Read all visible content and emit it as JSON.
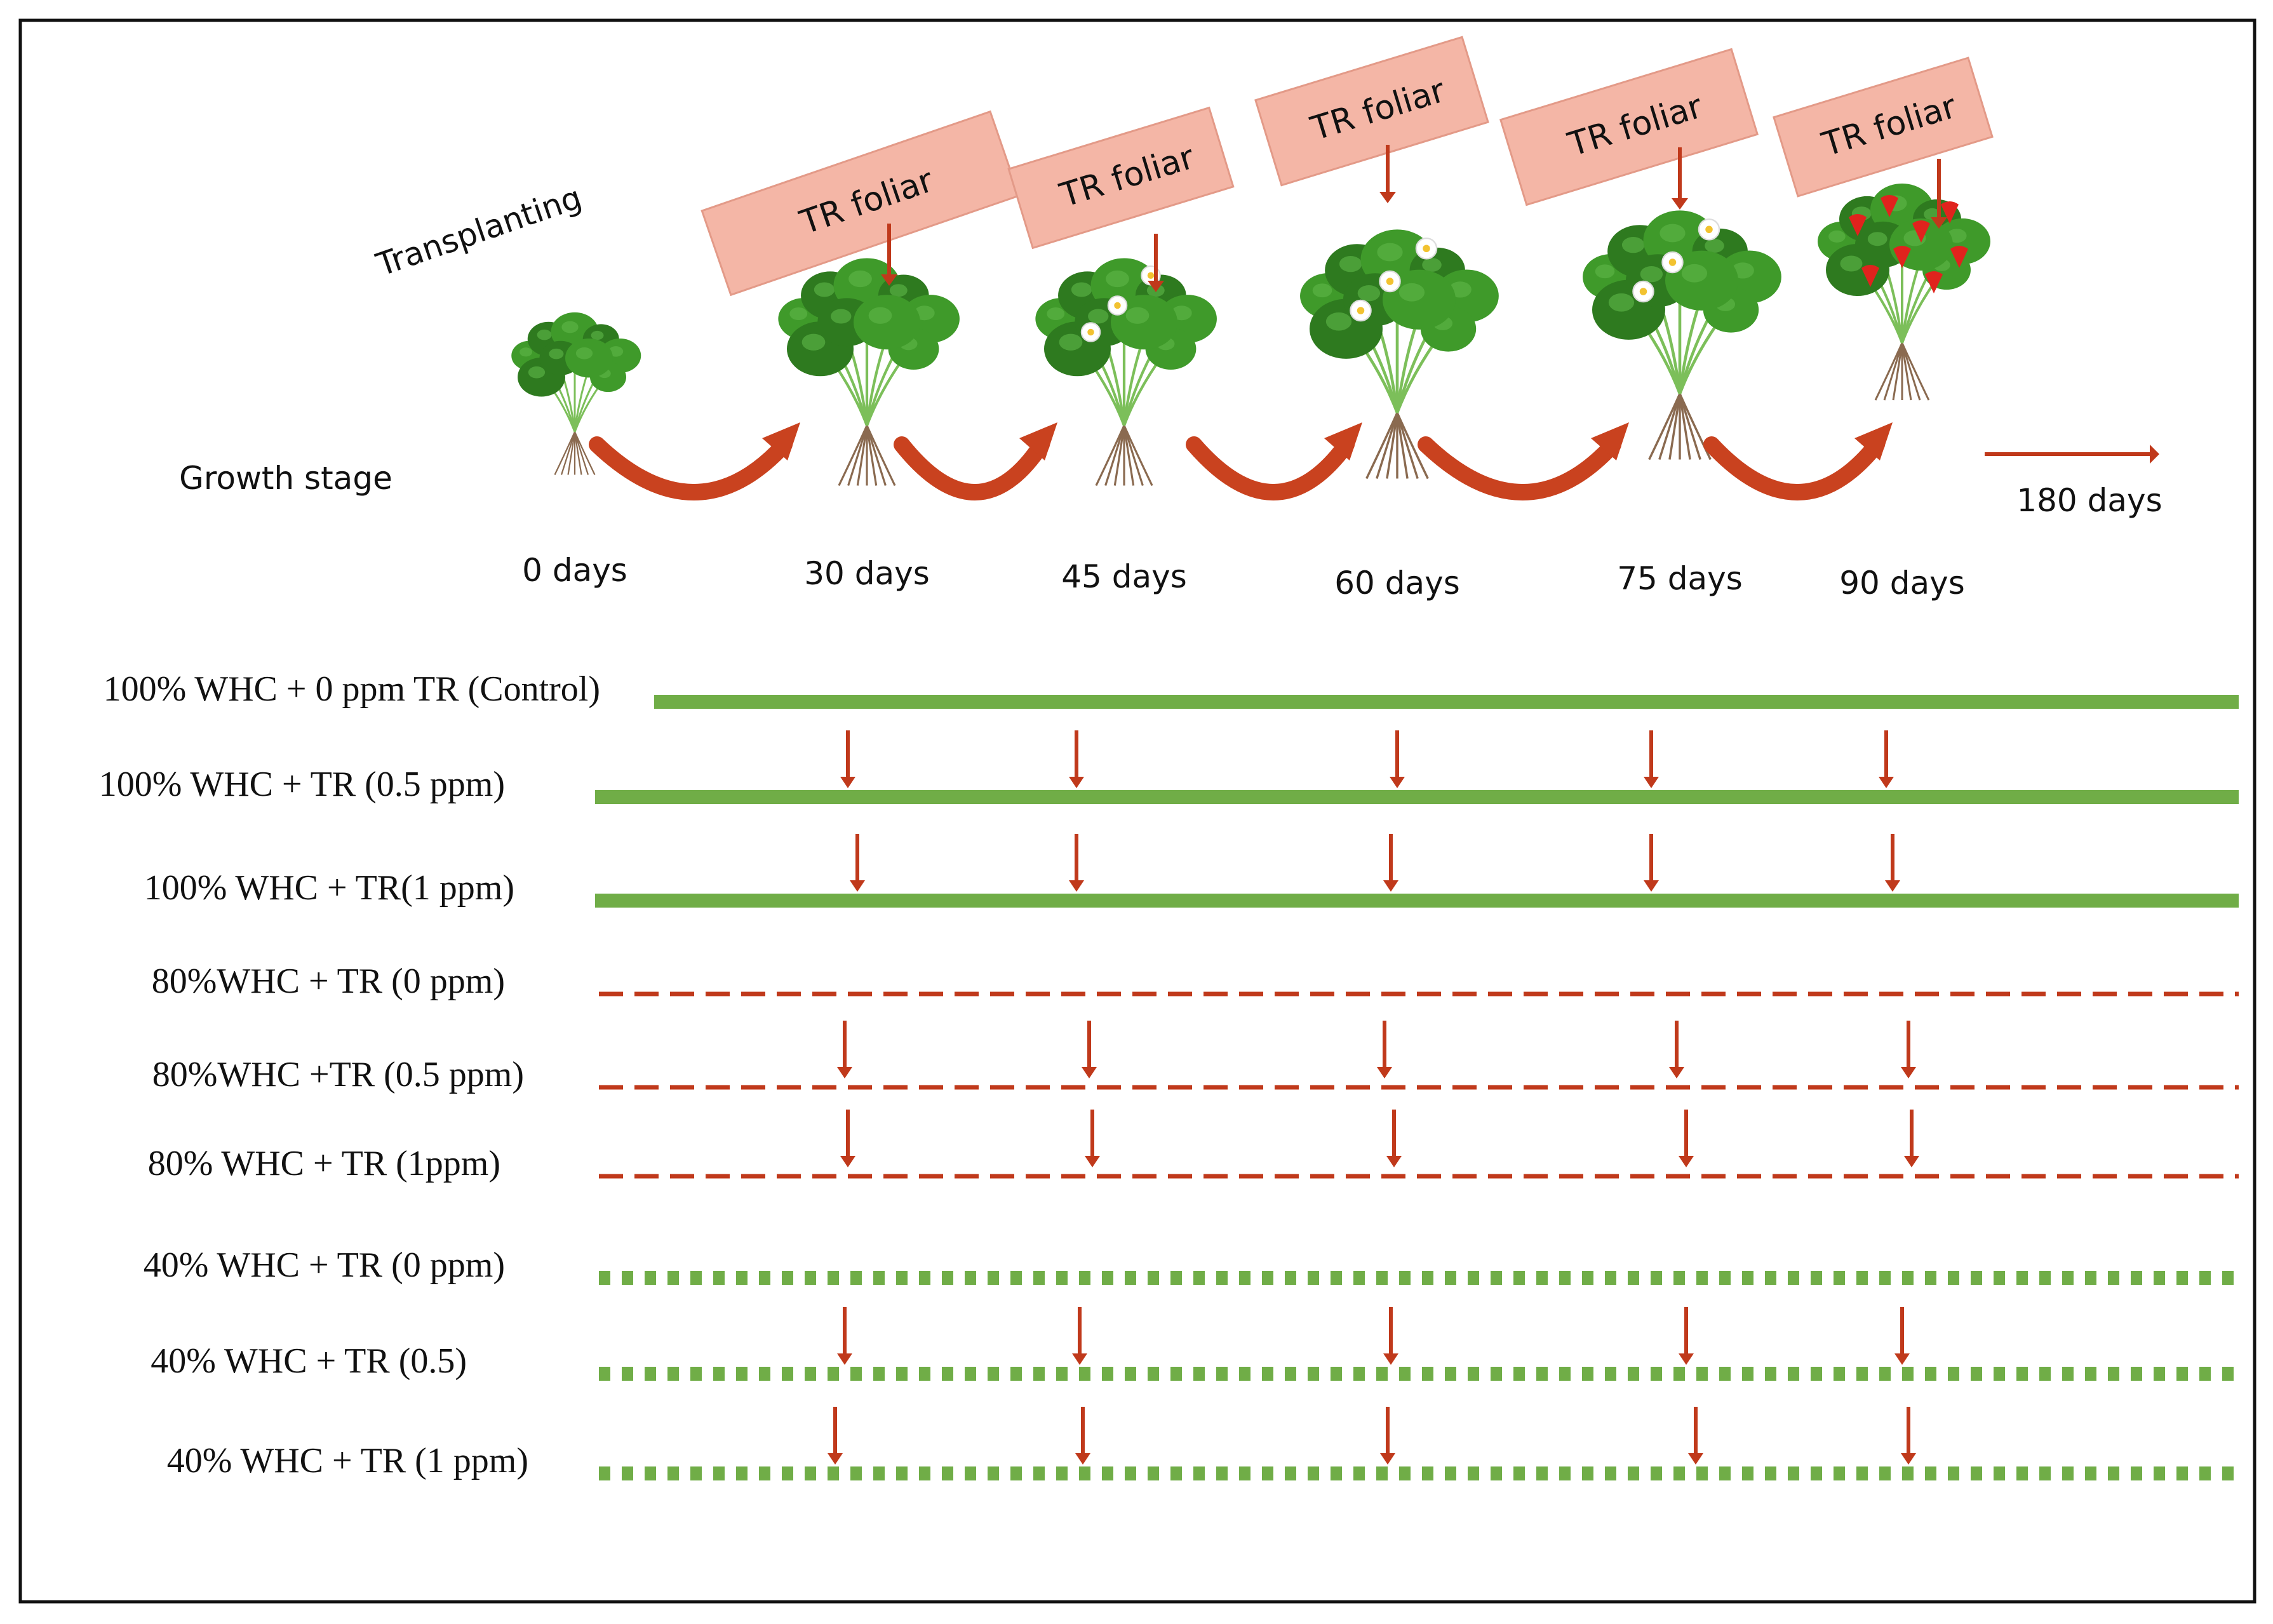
{
  "labels": {
    "transplanting": "Transplanting",
    "growth_stage": "Growth stage",
    "end_days": "180 days"
  },
  "foliar_label": "TR foliar",
  "stages": [
    {
      "day_label": "0 days"
    },
    {
      "day_label": "30 days"
    },
    {
      "day_label": "45 days"
    },
    {
      "day_label": "60 days"
    },
    {
      "day_label": "75 days"
    },
    {
      "day_label": "90 days"
    }
  ],
  "treatments": [
    {
      "label": "100% WHC + 0 ppm TR (Control)",
      "style": "solid",
      "foliar": false
    },
    {
      "label": "100% WHC + TR (0.5 ppm)",
      "style": "solid",
      "foliar": true
    },
    {
      "label": "100% WHC + TR(1 ppm)",
      "style": "solid",
      "foliar": true
    },
    {
      "label": "80%WHC + TR (0 ppm)",
      "style": "dashed",
      "foliar": false
    },
    {
      "label": "80%WHC +TR (0.5 ppm)",
      "style": "dashed",
      "foliar": true
    },
    {
      "label": "80% WHC + TR (1ppm)",
      "style": "dashed",
      "foliar": true
    },
    {
      "label": "40% WHC + TR (0 ppm)",
      "style": "dotted",
      "foliar": false
    },
    {
      "label": "40% WHC + TR (0.5)",
      "style": "dotted",
      "foliar": true
    },
    {
      "label": "40% WHC + TR (1 ppm)",
      "style": "dotted",
      "foliar": true
    }
  ],
  "colors": {
    "line_green": "#70ad47",
    "line_red": "#c0391b",
    "arrow_red": "#c0391b",
    "box_fill": "#f4b6a6",
    "box_stroke": "#e39a88",
    "curve_arrow": "#c9421f",
    "plant_leaf": "#3f9a2a",
    "plant_leaf_dark": "#2e7a1f",
    "root": "#8a6a50",
    "flower": "#ffffff",
    "fruit": "#e0231d"
  }
}
